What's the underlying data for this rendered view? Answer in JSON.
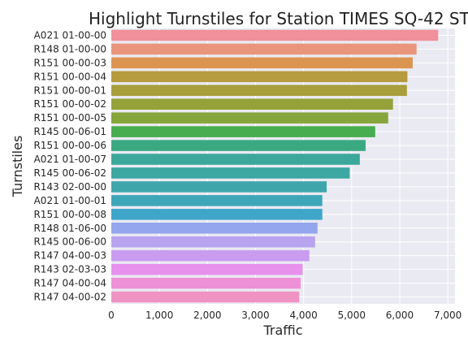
{
  "chart_data": {
    "type": "bar",
    "orientation": "horizontal",
    "title": "Highlight Turnstiles for Station TIMES SQ-42 ST",
    "xlabel": "Traffic",
    "ylabel": "Turnstiles",
    "xlim": [
      0,
      7150
    ],
    "xticks": [
      0,
      1000,
      2000,
      3000,
      4000,
      5000,
      6000,
      7000
    ],
    "xtick_labels": [
      "0",
      "1,000",
      "2,000",
      "3,000",
      "4,000",
      "5,000",
      "6,000",
      "7,000"
    ],
    "grid": true,
    "categories": [
      "A021 01-00-00",
      "R148 01-00-00",
      "R151 00-00-03",
      "R151 00-00-04",
      "R151 00-00-01",
      "R151 00-00-02",
      "R151 00-00-05",
      "R145 00-06-01",
      "R151 00-00-06",
      "A021 01-00-07",
      "R145 00-06-02",
      "R143 02-00-00",
      "A021 01-00-01",
      "R151 00-00-08",
      "R148 01-06-00",
      "R145 00-06-00",
      "R147 04-00-03",
      "R143 02-03-03",
      "R147 04-00-04",
      "R147 04-00-02"
    ],
    "values": [
      6800,
      6350,
      6270,
      6160,
      6150,
      5860,
      5760,
      5490,
      5290,
      5170,
      4960,
      4480,
      4390,
      4390,
      4290,
      4240,
      4120,
      3980,
      3940,
      3910
    ],
    "colors": [
      "#f1909a",
      "#e9957c",
      "#dc9451",
      "#b69a3e",
      "#a89e3b",
      "#95a23a",
      "#86a53b",
      "#47ad4e",
      "#3aa981",
      "#3ba89a",
      "#3da7a2",
      "#3fa7ac",
      "#3ea6b9",
      "#3fa6c9",
      "#93a6ee",
      "#b8a3ef",
      "#c99cf0",
      "#e790ec",
      "#ee90d6",
      "#ef93c3"
    ]
  }
}
